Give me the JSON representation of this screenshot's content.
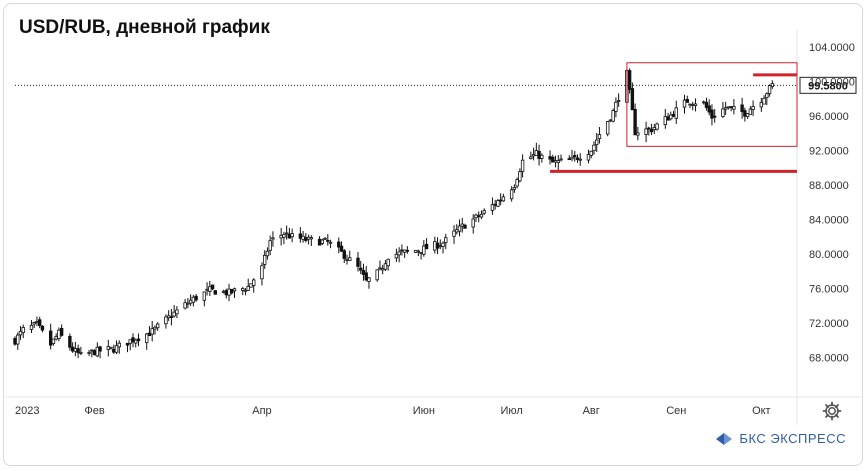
{
  "title": "USD/RUB, дневной график",
  "brand": "БКС ЭКСПРЕСС",
  "colors": {
    "candle": "#111111",
    "channel": "#d2222a",
    "axis_text": "#333333",
    "grid": "#e6e6e6"
  },
  "icons": {
    "settings": "gear-icon",
    "brand": "bks-logo-icon"
  },
  "chart_data": {
    "type": "candlestick",
    "ylim": [
      64,
      106
    ],
    "y_ticks": [
      "104.0000",
      "100.0000",
      "96.0000",
      "92.0000",
      "88.0000",
      "84.0000",
      "80.0000",
      "76.0000",
      "72.0000",
      "68.0000"
    ],
    "y_tick_values": [
      104,
      100,
      96,
      92,
      88,
      84,
      80,
      76,
      72,
      68
    ],
    "x_ticks": [
      "2023",
      "Фев",
      "Апр",
      "Июн",
      "Июл",
      "Авг",
      "Сен",
      "Окт"
    ],
    "x_tick_dates": [
      "2023-01-03",
      "2023-02-01",
      "2023-04-03",
      "2023-06-01",
      "2023-07-03",
      "2023-08-01",
      "2023-09-01",
      "2023-10-02"
    ],
    "date_range": [
      "2023-01-03",
      "2023-10-06"
    ],
    "last_price": "99.5800",
    "last_price_value": 99.58,
    "annotations": {
      "channel_box": {
        "start": "2023-08-14",
        "end": "2023-10-15",
        "top": 102.2,
        "bottom": 92.5
      },
      "resistance_line": {
        "start": "2023-09-29",
        "end": "2023-10-15",
        "level": 100.8
      },
      "support_line": {
        "start": "2023-07-17",
        "end": "2023-10-15",
        "level": 89.6
      }
    },
    "close_path": [
      [
        "2023-01-03",
        70.0
      ],
      [
        "2023-01-06",
        71.2
      ],
      [
        "2023-01-11",
        71.8
      ],
      [
        "2023-01-16",
        69.5
      ],
      [
        "2023-01-19",
        70.8
      ],
      [
        "2023-01-24",
        68.9
      ],
      [
        "2023-01-27",
        68.2
      ],
      [
        "2023-02-01",
        68.7
      ],
      [
        "2023-02-08",
        69.0
      ],
      [
        "2023-02-15",
        70.1
      ],
      [
        "2023-02-22",
        71.0
      ],
      [
        "2023-03-01",
        72.9
      ],
      [
        "2023-03-08",
        74.6
      ],
      [
        "2023-03-15",
        75.8
      ],
      [
        "2023-03-22",
        75.5
      ],
      [
        "2023-03-29",
        76.2
      ],
      [
        "2023-04-03",
        78.4
      ],
      [
        "2023-04-06",
        81.5
      ],
      [
        "2023-04-11",
        82.4
      ],
      [
        "2023-04-14",
        82.0
      ],
      [
        "2023-04-20",
        81.6
      ],
      [
        "2023-04-27",
        81.4
      ],
      [
        "2023-05-03",
        79.9
      ],
      [
        "2023-05-08",
        78.4
      ],
      [
        "2023-05-11",
        76.8
      ],
      [
        "2023-05-16",
        78.0
      ],
      [
        "2023-05-19",
        79.8
      ],
      [
        "2023-05-25",
        80.2
      ],
      [
        "2023-06-01",
        80.6
      ],
      [
        "2023-06-08",
        81.3
      ],
      [
        "2023-06-15",
        83.2
      ],
      [
        "2023-06-22",
        84.6
      ],
      [
        "2023-06-29",
        86.4
      ],
      [
        "2023-07-04",
        88.1
      ],
      [
        "2023-07-07",
        90.8
      ],
      [
        "2023-07-12",
        91.6
      ],
      [
        "2023-07-18",
        90.6
      ],
      [
        "2023-07-25",
        90.9
      ],
      [
        "2023-08-01",
        92.1
      ],
      [
        "2023-08-04",
        93.9
      ],
      [
        "2023-08-09",
        96.5
      ],
      [
        "2023-08-14",
        100.9
      ],
      [
        "2023-08-17",
        94.2
      ],
      [
        "2023-08-23",
        94.5
      ],
      [
        "2023-08-30",
        96.1
      ],
      [
        "2023-09-05",
        97.8
      ],
      [
        "2023-09-11",
        97.5
      ],
      [
        "2023-09-14",
        95.9
      ],
      [
        "2023-09-19",
        97.0
      ],
      [
        "2023-09-26",
        96.4
      ],
      [
        "2023-10-02",
        98.0
      ],
      [
        "2023-10-06",
        99.6
      ]
    ]
  }
}
